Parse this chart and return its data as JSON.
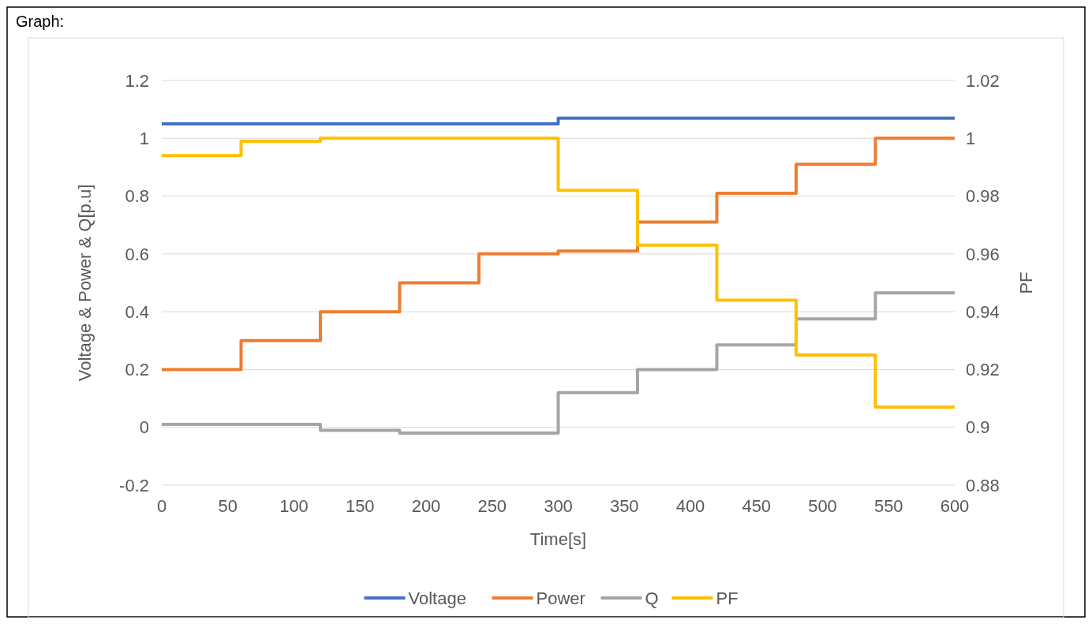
{
  "chart_data": {
    "type": "step",
    "title": "Graph:",
    "xlabel": "Time[s]",
    "ylabel": "Voltage & Power & Q[p.u]",
    "y2label": "PF",
    "x": [
      0,
      60,
      120,
      180,
      240,
      300,
      360,
      420,
      480,
      540,
      600
    ],
    "series": [
      {
        "name": "Voltage",
        "color": "#4472c4",
        "values": [
          1.05,
          1.05,
          1.05,
          1.05,
          1.05,
          1.07,
          1.07,
          1.07,
          1.07,
          1.07,
          1.07
        ]
      },
      {
        "name": "Power",
        "color": "#ed7d31",
        "values": [
          0.2,
          0.3,
          0.4,
          0.5,
          0.6,
          0.61,
          0.71,
          0.81,
          0.91,
          1.0,
          1.0
        ]
      },
      {
        "name": "Q",
        "color": "#a5a5a5",
        "values": [
          0.01,
          0.01,
          -0.01,
          -0.02,
          -0.02,
          0.12,
          0.2,
          0.285,
          0.375,
          0.465,
          0.465
        ]
      },
      {
        "name": "PF",
        "color": "#ffc000",
        "axis": "y2",
        "values": [
          0.994,
          0.999,
          1.0,
          1.0,
          1.0,
          0.982,
          0.963,
          0.944,
          0.925,
          0.907,
          0.907
        ]
      }
    ],
    "xlim": [
      0,
      600
    ],
    "xticks": [
      0,
      50,
      100,
      150,
      200,
      250,
      300,
      350,
      400,
      450,
      500,
      550,
      600
    ],
    "ylim": [
      -0.2,
      1.2
    ],
    "yticks": [
      -0.2,
      0,
      0.2,
      0.4,
      0.6,
      0.8,
      1,
      1.2
    ],
    "y2lim": [
      0.88,
      1.02
    ],
    "y2ticks": [
      0.88,
      0.9,
      0.92,
      0.94,
      0.96,
      0.98,
      1,
      1.02
    ],
    "grid": "y",
    "legend": "bottom"
  }
}
